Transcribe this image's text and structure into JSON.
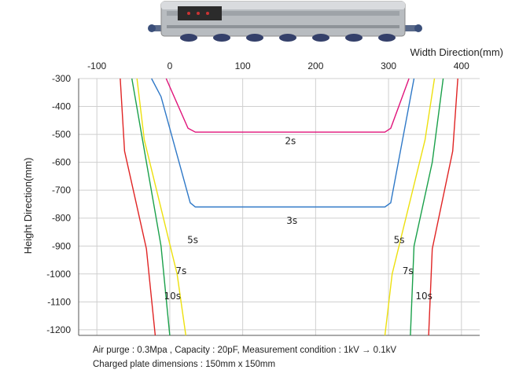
{
  "chart_data": {
    "type": "line",
    "xlabel": "Width Direction(mm)",
    "ylabel": "Height Direction(mm)",
    "xlim": [
      -125,
      425
    ],
    "ylim": [
      -1220,
      -300
    ],
    "x_ticks": [
      -100,
      0,
      100,
      200,
      300,
      400
    ],
    "x_tick_labels": [
      "-100",
      "0",
      "100",
      "200",
      "300",
      "400"
    ],
    "y_ticks": [
      -300,
      -400,
      -500,
      -600,
      -700,
      -800,
      -900,
      -1000,
      -1100,
      -1200
    ],
    "y_tick_labels": [
      "-300",
      "-400",
      "-500",
      "-600",
      "-700",
      "-800",
      "-900",
      "-1000",
      "-1100",
      "-1200"
    ],
    "grid": true,
    "series": [
      {
        "name": "2s",
        "color": "#e0147a",
        "segments": [
          [
            [
              -5,
              -300
            ],
            [
              25,
              -478
            ],
            [
              35,
              -492
            ],
            [
              295,
              -492
            ],
            [
              303,
              -478
            ],
            [
              328,
              -300
            ]
          ]
        ],
        "label_pos": [
          158,
          -535
        ]
      },
      {
        "name": "3s",
        "color": "#2e78c7",
        "segments": [
          [
            [
              -25,
              -300
            ],
            [
              -12,
              -365
            ],
            [
              28,
              -745
            ],
            [
              35,
              -760
            ],
            [
              295,
              -760
            ],
            [
              303,
              -745
            ],
            [
              335,
              -300
            ]
          ]
        ],
        "label_pos": [
          160,
          -820
        ]
      },
      {
        "name": "5s",
        "color": "#ede00e",
        "segments": [
          [
            [
              -45,
              -300
            ],
            [
              -35,
              -520
            ],
            [
              10,
              -1000
            ],
            [
              22,
              -1220
            ]
          ],
          [
            [
              295,
              -1220
            ],
            [
              305,
              -1000
            ],
            [
              350,
              -520
            ],
            [
              363,
              -300
            ]
          ]
        ],
        "label_pos": [
          [
            24,
            -890
          ],
          [
            307,
            -890
          ]
        ]
      },
      {
        "name": "7s",
        "color": "#1aa04a",
        "segments": [
          [
            [
              -52,
              -300
            ],
            [
              -40,
              -480
            ],
            [
              -12,
              -900
            ],
            [
              0,
              -1220
            ]
          ],
          [
            [
              330,
              -1220
            ],
            [
              335,
              -900
            ],
            [
              360,
              -600
            ],
            [
              375,
              -300
            ]
          ]
        ],
        "label_pos": [
          [
            8,
            -1000
          ],
          [
            319,
            -1000
          ]
        ]
      },
      {
        "name": "10s",
        "color": "#e02424",
        "segments": [
          [
            [
              -68,
              -300
            ],
            [
              -62,
              -560
            ],
            [
              -32,
              -910
            ],
            [
              -20,
              -1220
            ]
          ],
          [
            [
              355,
              -1220
            ],
            [
              360,
              -910
            ],
            [
              388,
              -560
            ],
            [
              395,
              -300
            ]
          ]
        ],
        "label_pos": [
          [
            -8,
            -1090
          ],
          [
            337,
            -1090
          ]
        ]
      }
    ]
  },
  "device_image_colors": {
    "body": "#b8bcc0",
    "panel": "#2b2b2b",
    "ports": "#34406a"
  },
  "caption": {
    "line1": "Air purge : 0.3Mpa , Capacity : 20pF, Measurement condition : 1kV → 0.1kV",
    "line2": "Charged plate dimensions : 150mm x 150mm"
  }
}
